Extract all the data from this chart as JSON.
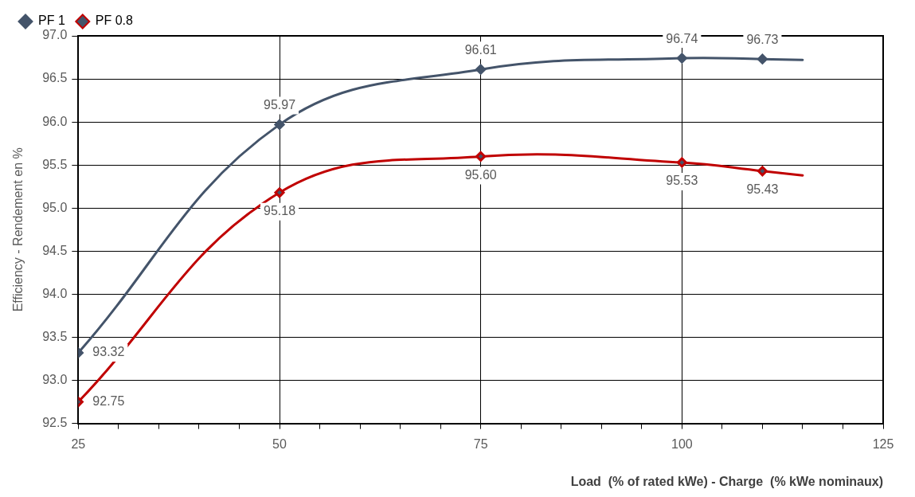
{
  "chart_data": {
    "type": "line",
    "xlabel": "Load  (% of rated kWe) - Charge  (% kWe nominaux)",
    "ylabel": "Efficiency - Rendement en %",
    "x": [
      25,
      50,
      75,
      100,
      110,
      115
    ],
    "series": [
      {
        "name": "PF 1",
        "color": "#44546a",
        "values": [
          93.32,
          95.97,
          96.61,
          96.74,
          96.73,
          96.72
        ],
        "value_labels": [
          "93.32",
          "95.97",
          "96.61",
          "96.74",
          "96.73",
          null
        ]
      },
      {
        "name": "PF 0.8",
        "color": "#c00000",
        "values": [
          92.75,
          95.18,
          95.6,
          95.53,
          95.43,
          95.38
        ],
        "value_labels": [
          "92.75",
          "95.18",
          "95.60",
          "95.53",
          "95.43",
          null
        ]
      }
    ],
    "xlim": [
      25,
      125
    ],
    "xticks": [
      25,
      {
        "value": 30,
        "label": null
      },
      {
        "value": 35,
        "label": null
      },
      {
        "value": 40,
        "label": null
      },
      {
        "value": 45,
        "label": null
      },
      50,
      {
        "value": 55,
        "label": null
      },
      {
        "value": 60,
        "label": null
      },
      {
        "value": 65,
        "label": null
      },
      {
        "value": 70,
        "label": null
      },
      75,
      {
        "value": 80,
        "label": null
      },
      {
        "value": 85,
        "label": null
      },
      {
        "value": 90,
        "label": null
      },
      {
        "value": 95,
        "label": null
      },
      100,
      {
        "value": 105,
        "label": null
      },
      {
        "value": 110,
        "label": null
      },
      {
        "value": 115,
        "label": null
      },
      {
        "value": 120,
        "label": null
      },
      125
    ],
    "ylim": [
      92.5,
      97.0
    ],
    "yticks": [
      {
        "value": 92.5,
        "label": "92.5"
      },
      {
        "value": 93.0,
        "label": "93.0"
      },
      {
        "value": 93.5,
        "label": "93.5"
      },
      {
        "value": 94.0,
        "label": "94.0"
      },
      {
        "value": 94.5,
        "label": "94.5"
      },
      {
        "value": 95.0,
        "label": "95.0"
      },
      {
        "value": 95.5,
        "label": "95.5"
      },
      {
        "value": 96.0,
        "label": "96.0"
      },
      {
        "value": 96.5,
        "label": "96.5"
      },
      {
        "value": 97.0,
        "label": "97.0"
      }
    ],
    "grid": true,
    "legend": "top left",
    "marker": "diamond",
    "line_style": "solid"
  }
}
